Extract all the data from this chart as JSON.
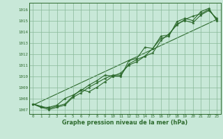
{
  "x": [
    0,
    1,
    2,
    3,
    4,
    5,
    6,
    7,
    8,
    9,
    10,
    11,
    12,
    13,
    14,
    15,
    16,
    17,
    18,
    19,
    20,
    21,
    22,
    23
  ],
  "series1": [
    1007.5,
    1007.2,
    1007.0,
    1007.2,
    1007.4,
    1008.1,
    1008.5,
    1009.0,
    1009.4,
    1009.8,
    1010.1,
    1010.1,
    1011.1,
    1011.5,
    1011.8,
    1012.5,
    1013.4,
    1013.6,
    1014.9,
    1015.2,
    1015.0,
    1015.8,
    1016.1,
    1015.0
  ],
  "series2": [
    1007.5,
    1007.2,
    1007.2,
    1007.4,
    1008.0,
    1008.3,
    1008.7,
    1009.2,
    1009.6,
    1010.1,
    1010.0,
    1010.0,
    1011.4,
    1011.6,
    1012.6,
    1012.5,
    1013.6,
    1013.7,
    1014.7,
    1015.0,
    1014.8,
    1015.5,
    1015.9,
    1015.2
  ],
  "series3": [
    1007.5,
    1007.3,
    1007.1,
    1007.3,
    1007.5,
    1008.2,
    1008.8,
    1008.6,
    1009.0,
    1009.5,
    1010.0,
    1010.3,
    1011.0,
    1011.3,
    1011.8,
    1012.1,
    1013.2,
    1013.8,
    1014.6,
    1015.1,
    1015.4,
    1015.6,
    1016.0,
    1015.1
  ],
  "trend_x": [
    0,
    23
  ],
  "trend_y": [
    1007.4,
    1015.1
  ],
  "line_color": "#2d6a2d",
  "bg_color": "#c8e8d8",
  "grid_color": "#88b898",
  "ylabel_values": [
    1007,
    1008,
    1009,
    1010,
    1011,
    1012,
    1013,
    1014,
    1015,
    1016
  ],
  "xlabel": "Graphe pression niveau de la mer (hPa)",
  "ylim": [
    1006.6,
    1016.6
  ],
  "xlim": [
    -0.5,
    23.5
  ],
  "tick_fontsize": 4.2,
  "xlabel_fontsize": 5.8
}
